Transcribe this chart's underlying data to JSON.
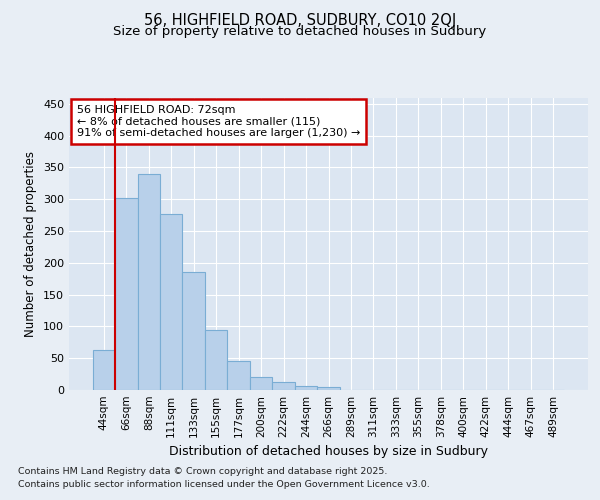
{
  "title1": "56, HIGHFIELD ROAD, SUDBURY, CO10 2QJ",
  "title2": "Size of property relative to detached houses in Sudbury",
  "xlabel": "Distribution of detached houses by size in Sudbury",
  "ylabel": "Number of detached properties",
  "categories": [
    "44sqm",
    "66sqm",
    "88sqm",
    "111sqm",
    "133sqm",
    "155sqm",
    "177sqm",
    "200sqm",
    "222sqm",
    "244sqm",
    "266sqm",
    "289sqm",
    "311sqm",
    "333sqm",
    "355sqm",
    "378sqm",
    "400sqm",
    "422sqm",
    "444sqm",
    "467sqm",
    "489sqm"
  ],
  "values": [
    63,
    302,
    340,
    277,
    185,
    95,
    45,
    21,
    13,
    6,
    5,
    0,
    0,
    0,
    0,
    0,
    0,
    0,
    0,
    0,
    0
  ],
  "bar_color": "#b8d0ea",
  "bar_edge_color": "#7aadd4",
  "vline_x_index": 1,
  "vline_color": "#cc0000",
  "annotation_lines": [
    "56 HIGHFIELD ROAD: 72sqm",
    "← 8% of detached houses are smaller (115)",
    "91% of semi-detached houses are larger (1,230) →"
  ],
  "annotation_box_color": "#cc0000",
  "footer1": "Contains HM Land Registry data © Crown copyright and database right 2025.",
  "footer2": "Contains public sector information licensed under the Open Government Licence v3.0.",
  "bg_color": "#e8eef5",
  "plot_bg_color": "#dce6f2",
  "grid_color": "#ffffff",
  "ylim": [
    0,
    460
  ],
  "yticks": [
    0,
    50,
    100,
    150,
    200,
    250,
    300,
    350,
    400,
    450
  ]
}
